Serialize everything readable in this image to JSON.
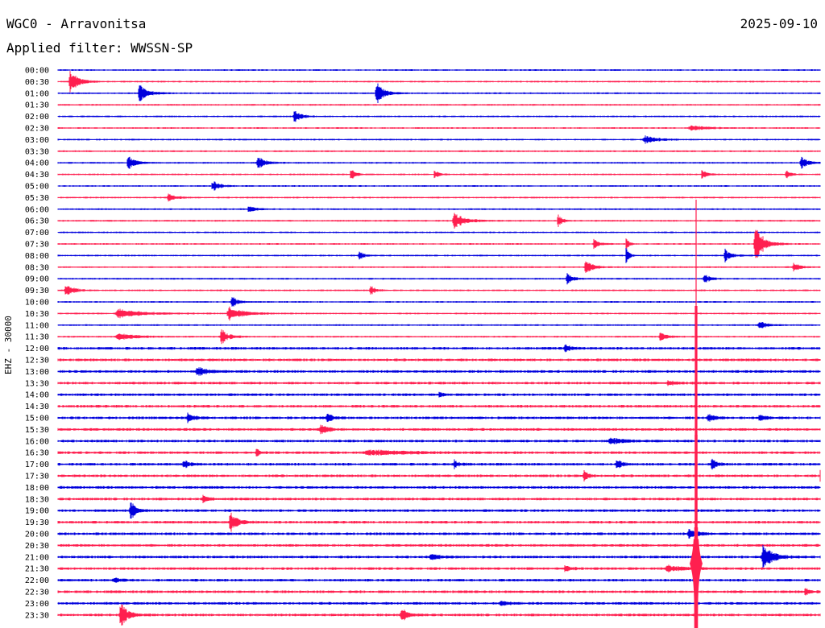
{
  "header": {
    "station": "WGC0 - Arravonitsa",
    "date": "2025-09-10",
    "filter": "Applied filter: WWSSN-SP"
  },
  "channel_label": "EHZ - 30000",
  "colors": {
    "trace_a": "#0000dd",
    "trace_b": "#ff1f4f",
    "text": "#000000",
    "background": "#ffffff"
  },
  "rows": [
    {
      "label": "00:00"
    },
    {
      "label": "00:30"
    },
    {
      "label": "01:00"
    },
    {
      "label": "01:30"
    },
    {
      "label": "02:00"
    },
    {
      "label": "02:30"
    },
    {
      "label": "03:00"
    },
    {
      "label": "03:30"
    },
    {
      "label": "04:00"
    },
    {
      "label": "04:30"
    },
    {
      "label": "05:00"
    },
    {
      "label": "05:30"
    },
    {
      "label": "06:00"
    },
    {
      "label": "06:30"
    },
    {
      "label": "07:00"
    },
    {
      "label": "07:30"
    },
    {
      "label": "08:00"
    },
    {
      "label": "08:30"
    },
    {
      "label": "09:00"
    },
    {
      "label": "09:30"
    },
    {
      "label": "10:00"
    },
    {
      "label": "10:30"
    },
    {
      "label": "11:00"
    },
    {
      "label": "11:30"
    },
    {
      "label": "12:00"
    },
    {
      "label": "12:30"
    },
    {
      "label": "13:00"
    },
    {
      "label": "13:30"
    },
    {
      "label": "14:00"
    },
    {
      "label": "14:30"
    },
    {
      "label": "15:00"
    },
    {
      "label": "15:30"
    },
    {
      "label": "16:00"
    },
    {
      "label": "16:30"
    },
    {
      "label": "17:00"
    },
    {
      "label": "17:30"
    },
    {
      "label": "18:00"
    },
    {
      "label": "18:30"
    },
    {
      "label": "19:00"
    },
    {
      "label": "19:30"
    },
    {
      "label": "20:00"
    },
    {
      "label": "20:30"
    },
    {
      "label": "21:00"
    },
    {
      "label": "21:30"
    },
    {
      "label": "22:00"
    },
    {
      "label": "22:30"
    },
    {
      "label": "23:00"
    },
    {
      "label": "23:30"
    }
  ]
}
